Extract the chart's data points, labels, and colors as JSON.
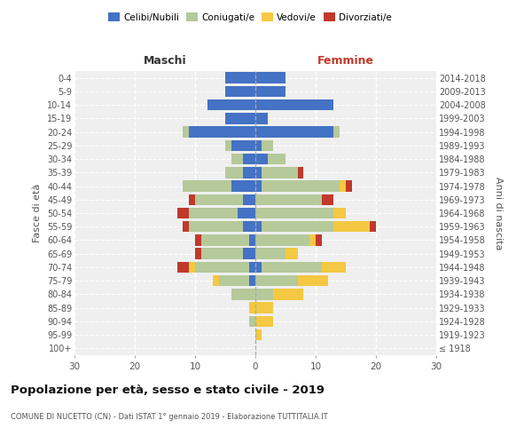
{
  "age_groups": [
    "100+",
    "95-99",
    "90-94",
    "85-89",
    "80-84",
    "75-79",
    "70-74",
    "65-69",
    "60-64",
    "55-59",
    "50-54",
    "45-49",
    "40-44",
    "35-39",
    "30-34",
    "25-29",
    "20-24",
    "15-19",
    "10-14",
    "5-9",
    "0-4"
  ],
  "birth_years": [
    "≤ 1918",
    "1919-1923",
    "1924-1928",
    "1929-1933",
    "1934-1938",
    "1939-1943",
    "1944-1948",
    "1949-1953",
    "1954-1958",
    "1959-1963",
    "1964-1968",
    "1969-1973",
    "1974-1978",
    "1979-1983",
    "1984-1988",
    "1989-1993",
    "1994-1998",
    "1999-2003",
    "2004-2008",
    "2009-2013",
    "2014-2018"
  ],
  "maschi": {
    "celibi": [
      0,
      0,
      0,
      0,
      0,
      1,
      1,
      2,
      1,
      2,
      3,
      2,
      4,
      2,
      2,
      4,
      11,
      5,
      8,
      5,
      5
    ],
    "coniugati": [
      0,
      0,
      1,
      0,
      4,
      5,
      9,
      7,
      8,
      9,
      8,
      8,
      8,
      3,
      2,
      1,
      1,
      0,
      0,
      0,
      0
    ],
    "vedovi": [
      0,
      0,
      0,
      1,
      0,
      1,
      1,
      0,
      0,
      0,
      0,
      0,
      0,
      0,
      0,
      0,
      0,
      0,
      0,
      0,
      0
    ],
    "divorziati": [
      0,
      0,
      0,
      0,
      0,
      0,
      2,
      1,
      1,
      1,
      2,
      1,
      0,
      0,
      0,
      0,
      0,
      0,
      0,
      0,
      0
    ]
  },
  "femmine": {
    "nubili": [
      0,
      0,
      0,
      0,
      0,
      0,
      1,
      0,
      0,
      1,
      0,
      0,
      1,
      1,
      2,
      1,
      13,
      2,
      13,
      5,
      5
    ],
    "coniugate": [
      0,
      0,
      0,
      0,
      3,
      7,
      10,
      5,
      9,
      12,
      13,
      11,
      13,
      6,
      3,
      2,
      1,
      0,
      0,
      0,
      0
    ],
    "vedove": [
      0,
      1,
      3,
      3,
      5,
      5,
      4,
      2,
      1,
      6,
      2,
      0,
      1,
      0,
      0,
      0,
      0,
      0,
      0,
      0,
      0
    ],
    "divorziate": [
      0,
      0,
      0,
      0,
      0,
      0,
      0,
      0,
      1,
      1,
      0,
      2,
      1,
      1,
      0,
      0,
      0,
      0,
      0,
      0,
      0
    ]
  },
  "colors": {
    "celibi": "#4472C4",
    "coniugati": "#b5c99a",
    "vedovi": "#f4c842",
    "divorziati": "#c0392b"
  },
  "xlim": 30,
  "title": "Popolazione per età, sesso e stato civile - 2019",
  "subtitle": "COMUNE DI NUCETTO (CN) - Dati ISTAT 1° gennaio 2019 - Elaborazione TUTTITALIA.IT",
  "ylabel_left": "Fasce di età",
  "ylabel_right": "Anni di nascita",
  "xlabel_maschi": "Maschi",
  "xlabel_femmine": "Femmine",
  "bg_color": "#efefef"
}
